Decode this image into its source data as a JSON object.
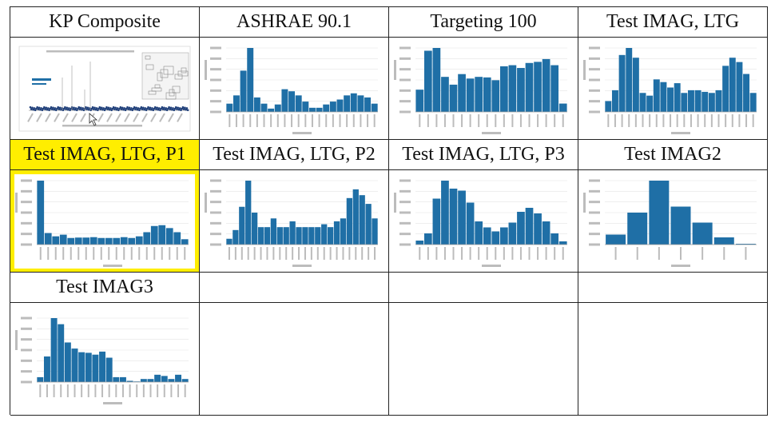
{
  "grid_titles": [
    "KP Composite",
    "ASHRAE 90.1",
    "Targeting 100",
    "Test IMAG, LTG",
    "Test IMAG, LTG, P1",
    "Test IMAG, LTG, P2",
    "Test IMAG, LTG, P3",
    "Test IMAG2",
    "Test IMAG3"
  ],
  "highlight_color": "#ffee00",
  "bar_color": "#1f6fa6",
  "charts": [
    {
      "type": "scatter",
      "series_color": "#1f3f7a",
      "annotation_color": "#1f6fa6"
    },
    {
      "type": "bar",
      "values": [
        20,
        40,
        100,
        155,
        35,
        20,
        8,
        18,
        55,
        50,
        40,
        25,
        10,
        10,
        18,
        25,
        30,
        40,
        45,
        40,
        35,
        20
      ]
    },
    {
      "type": "bar",
      "values": [
        40,
        110,
        115,
        63,
        49,
        68,
        60,
        63,
        62,
        57,
        82,
        84,
        79,
        88,
        90,
        95,
        84,
        15
      ]
    },
    {
      "type": "bar",
      "values": [
        20,
        40,
        105,
        118,
        100,
        35,
        30,
        60,
        55,
        45,
        53,
        35,
        40,
        40,
        37,
        35,
        40,
        85,
        100,
        92,
        70,
        35
      ]
    },
    {
      "type": "bar",
      "values": [
        155,
        28,
        20,
        24,
        16,
        17,
        17,
        18,
        16,
        16,
        16,
        18,
        16,
        20,
        30,
        45,
        47,
        40,
        30,
        13
      ]
    },
    {
      "type": "bar",
      "values": [
        10,
        25,
        65,
        110,
        55,
        30,
        30,
        45,
        30,
        30,
        40,
        30,
        30,
        30,
        30,
        35,
        30,
        40,
        45,
        80,
        95,
        85,
        70,
        45
      ]
    },
    {
      "type": "bar",
      "values": [
        10,
        28,
        115,
        160,
        140,
        135,
        105,
        58,
        43,
        33,
        43,
        55,
        82,
        92,
        78,
        58,
        28,
        8
      ]
    },
    {
      "type": "bar",
      "values": [
        25,
        80,
        160,
        95,
        55,
        18,
        2
      ]
    },
    {
      "type": "bar",
      "values": [
        8,
        42,
        105,
        95,
        65,
        55,
        49,
        48,
        45,
        50,
        40,
        8,
        8,
        2,
        1,
        5,
        5,
        12,
        10,
        5,
        12,
        5
      ]
    }
  ]
}
